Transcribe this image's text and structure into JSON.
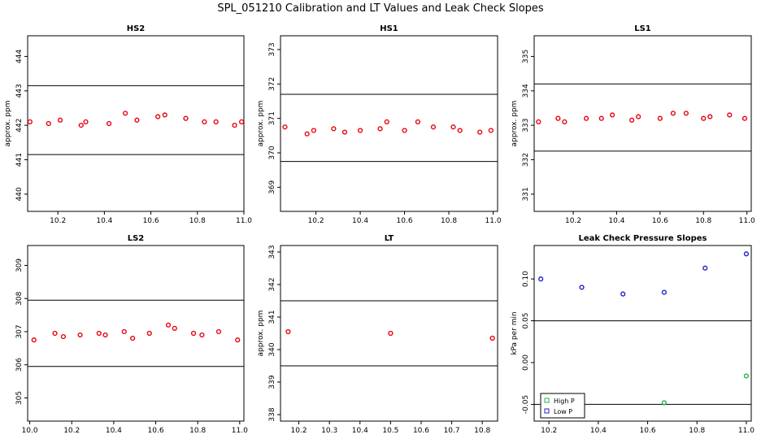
{
  "figure": {
    "title": "SPL_051210  Calibration and LT Values and Leak Check Slopes"
  },
  "colors": {
    "points": "#e8000b",
    "high_p": "#22b14c",
    "low_p": "#1f22c8",
    "line": "#000000"
  },
  "chart_data": [
    {
      "type": "scatter",
      "title": "HS2",
      "ylabel": "approx. ppm",
      "xlim": [
        10.07,
        11.0
      ],
      "ylim": [
        439.5,
        444.6
      ],
      "xticks": [
        "10.2",
        "10.4",
        "10.6",
        "10.8",
        "11.0"
      ],
      "xtick_values": [
        10.2,
        10.4,
        10.6,
        10.8,
        11.0
      ],
      "yticks": [
        "440",
        "441",
        "442",
        "443",
        "444"
      ],
      "ytick_values": [
        440,
        441,
        442,
        443,
        444
      ],
      "hlines": [
        441.15,
        443.15
      ],
      "points": {
        "x": [
          10.08,
          10.16,
          10.21,
          10.3,
          10.32,
          10.42,
          10.49,
          10.54,
          10.63,
          10.66,
          10.75,
          10.83,
          10.88,
          10.96,
          10.99
        ],
        "y": [
          442.1,
          442.05,
          442.15,
          442.0,
          442.1,
          442.05,
          442.35,
          442.15,
          442.25,
          442.3,
          442.2,
          442.1,
          442.1,
          442.0,
          442.1
        ]
      }
    },
    {
      "type": "scatter",
      "title": "HS1",
      "ylabel": "approx. ppm",
      "xlim": [
        10.04,
        11.02
      ],
      "ylim": [
        368.3,
        373.4
      ],
      "xticks": [
        "10.2",
        "10.4",
        "10.6",
        "10.8",
        "11.0"
      ],
      "xtick_values": [
        10.2,
        10.4,
        10.6,
        10.8,
        11.0
      ],
      "yticks": [
        "369",
        "370",
        "371",
        "372",
        "373"
      ],
      "ytick_values": [
        369,
        370,
        371,
        372,
        373
      ],
      "hlines": [
        369.75,
        371.7
      ],
      "points": {
        "x": [
          10.06,
          10.16,
          10.19,
          10.28,
          10.33,
          10.4,
          10.49,
          10.52,
          10.6,
          10.66,
          10.73,
          10.82,
          10.85,
          10.94,
          10.99
        ],
        "y": [
          370.75,
          370.55,
          370.65,
          370.7,
          370.6,
          370.65,
          370.7,
          370.9,
          370.65,
          370.9,
          370.75,
          370.75,
          370.65,
          370.6,
          370.65
        ]
      }
    },
    {
      "type": "scatter",
      "title": "LS1",
      "ylabel": "approx. ppm",
      "xlim": [
        10.02,
        11.02
      ],
      "ylim": [
        330.5,
        335.6
      ],
      "xticks": [
        "10.2",
        "10.4",
        "10.6",
        "10.8",
        "11.0"
      ],
      "xtick_values": [
        10.2,
        10.4,
        10.6,
        10.8,
        11.0
      ],
      "yticks": [
        "331",
        "332",
        "333",
        "334",
        "335"
      ],
      "ytick_values": [
        331,
        332,
        333,
        334,
        335
      ],
      "hlines": [
        332.25,
        334.2
      ],
      "points": {
        "x": [
          10.04,
          10.13,
          10.16,
          10.26,
          10.33,
          10.38,
          10.47,
          10.5,
          10.6,
          10.66,
          10.72,
          10.8,
          10.83,
          10.92,
          10.99
        ],
        "y": [
          333.1,
          333.2,
          333.1,
          333.2,
          333.2,
          333.3,
          333.15,
          333.25,
          333.2,
          333.35,
          333.35,
          333.2,
          333.25,
          333.3,
          333.2
        ]
      }
    },
    {
      "type": "scatter",
      "title": "LS2",
      "ylabel": "",
      "xlim": [
        9.99,
        11.02
      ],
      "ylim": [
        304.3,
        309.6
      ],
      "xticks": [
        "10.0",
        "10.2",
        "10.4",
        "10.6",
        "10.8",
        "11.0"
      ],
      "xtick_values": [
        10.0,
        10.2,
        10.4,
        10.6,
        10.8,
        11.0
      ],
      "yticks": [
        "305",
        "306",
        "307",
        "308",
        "309"
      ],
      "ytick_values": [
        305,
        306,
        307,
        308,
        309
      ],
      "hlines": [
        305.95,
        307.95
      ],
      "points": {
        "x": [
          10.02,
          10.12,
          10.16,
          10.24,
          10.33,
          10.36,
          10.45,
          10.49,
          10.57,
          10.66,
          10.69,
          10.78,
          10.82,
          10.9,
          10.99
        ],
        "y": [
          306.75,
          306.95,
          306.85,
          306.9,
          306.95,
          306.9,
          307.0,
          306.8,
          306.95,
          307.2,
          307.1,
          306.95,
          306.9,
          307.0,
          306.75
        ]
      }
    },
    {
      "type": "scatter",
      "title": "LT",
      "ylabel": "approx. ppm",
      "xlim": [
        10.14,
        10.85
      ],
      "ylim": [
        337.8,
        343.2
      ],
      "xticks": [
        "10.2",
        "10.3",
        "10.4",
        "10.5",
        "10.6",
        "10.7",
        "10.8"
      ],
      "xtick_values": [
        10.2,
        10.3,
        10.4,
        10.5,
        10.6,
        10.7,
        10.8
      ],
      "yticks": [
        "338",
        "339",
        "340",
        "341",
        "342",
        "343"
      ],
      "ytick_values": [
        338,
        339,
        340,
        341,
        342,
        343
      ],
      "hlines": [
        339.5,
        341.5
      ],
      "points": {
        "x": [
          10.165,
          10.5,
          10.833
        ],
        "y": [
          340.55,
          340.5,
          340.35
        ]
      }
    },
    {
      "type": "scatter",
      "title": "Leak Check Pressure Slopes",
      "ylabel": "kPa per min",
      "xlim": [
        10.14,
        11.02
      ],
      "ylim": [
        -0.07,
        0.14
      ],
      "xticks": [
        "10.2",
        "10.4",
        "10.6",
        "10.8",
        "11.0"
      ],
      "xtick_values": [
        10.2,
        10.4,
        10.6,
        10.8,
        11.0
      ],
      "yticks": [
        "-0.05",
        "0.00",
        "0.05",
        "0.10"
      ],
      "ytick_values": [
        -0.05,
        0.0,
        0.05,
        0.1
      ],
      "hlines": [
        0.05,
        -0.05
      ],
      "legend": {
        "placement": "bottom-left",
        "entries": [
          "High P",
          "Low P"
        ]
      },
      "series": [
        {
          "name": "High P",
          "x": [
            10.333,
            10.667,
            11.0
          ],
          "y": [
            -0.042,
            -0.048,
            -0.016
          ]
        },
        {
          "name": "Low P",
          "x": [
            10.167,
            10.333,
            10.5,
            10.667,
            10.833,
            11.0
          ],
          "y": [
            0.1,
            0.09,
            0.082,
            0.084,
            0.113,
            0.13
          ]
        }
      ]
    }
  ]
}
